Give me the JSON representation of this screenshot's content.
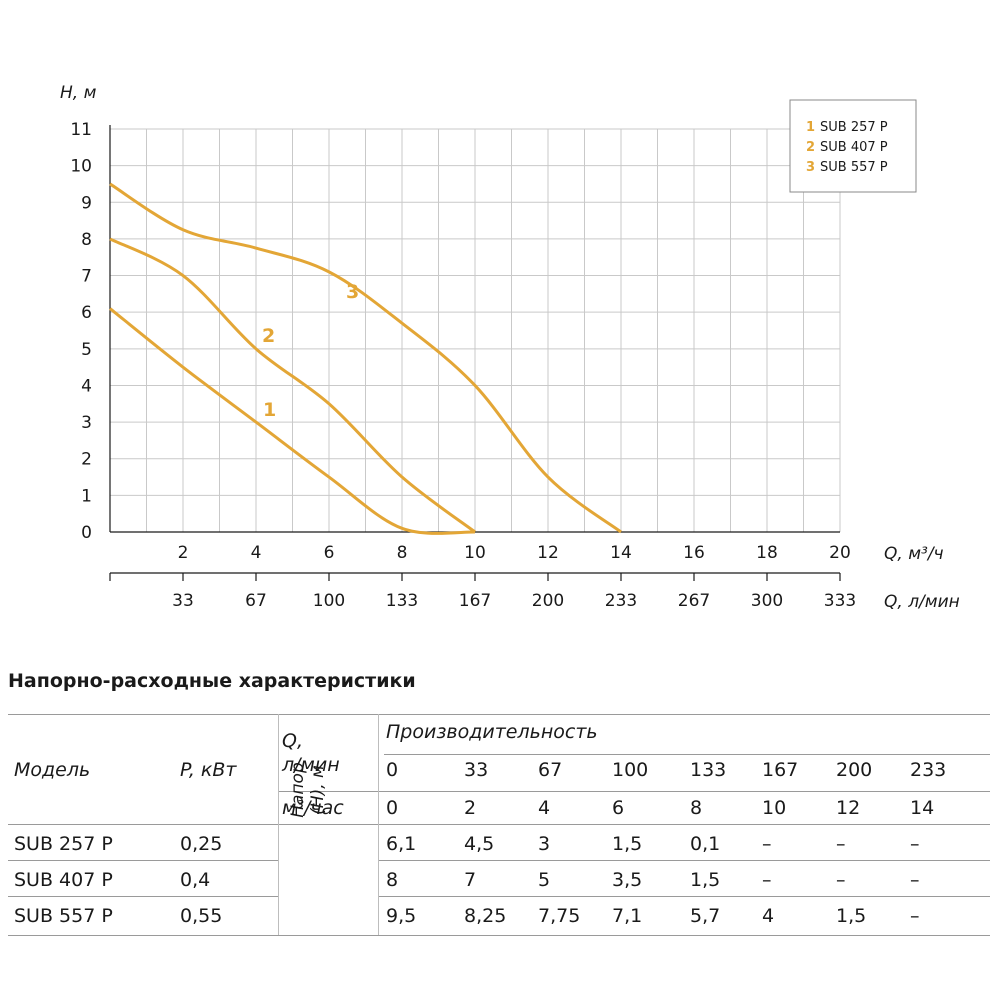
{
  "chart_data": {
    "type": "line",
    "xlabel": "Q, м³/ч",
    "xlabel2": "Q, л/мин",
    "ylabel": "Н, м",
    "xlim": [
      0,
      20
    ],
    "ylim": [
      0,
      11
    ],
    "grid": true,
    "legend_position": "top-right",
    "x_ticks": [
      "2",
      "4",
      "6",
      "8",
      "10",
      "12",
      "14",
      "16",
      "18",
      "20"
    ],
    "x2_ticks": [
      "33",
      "67",
      "100",
      "133",
      "167",
      "200",
      "233",
      "267",
      "300",
      "333"
    ],
    "y_ticks": [
      "0",
      "1",
      "2",
      "3",
      "4",
      "5",
      "6",
      "7",
      "8",
      "9",
      "10",
      "11"
    ],
    "series": [
      {
        "name": "SUB 257 P",
        "label": "1",
        "x": [
          0,
          2,
          4,
          6,
          8,
          10
        ],
        "values": [
          6.1,
          4.5,
          3,
          1.5,
          0.1,
          0
        ]
      },
      {
        "name": "SUB 407 P",
        "label": "2",
        "x": [
          0,
          2,
          4,
          6,
          8,
          10
        ],
        "values": [
          8,
          7,
          5,
          3.5,
          1.5,
          0
        ]
      },
      {
        "name": "SUB 557 P",
        "label": "3",
        "x": [
          0,
          2,
          4,
          6,
          8,
          10,
          12,
          14
        ],
        "values": [
          9.5,
          8.25,
          7.75,
          7.1,
          5.7,
          4,
          1.5,
          0
        ]
      }
    ],
    "legend": [
      {
        "num": "1",
        "text": "SUB 257 P"
      },
      {
        "num": "2",
        "text": "SUB 407 P"
      },
      {
        "num": "3",
        "text": "SUB 557 P"
      }
    ],
    "colors": {
      "curve": "#e3a636",
      "grid": "#c9c9c9",
      "axis": "#1a1a1a"
    }
  },
  "table": {
    "title": "Напорно-расходные характеристики",
    "header": {
      "model": "Модель",
      "power": "P, кВт",
      "q_lmin": "Q,",
      "q_lmin2": "л/мин",
      "q_m3": "м³/час",
      "capacity": "Производительность",
      "flow_lmin": [
        "0",
        "33",
        "67",
        "100",
        "133",
        "167",
        "200",
        "233"
      ],
      "flow_m3": [
        "0",
        "2",
        "4",
        "6",
        "8",
        "10",
        "12",
        "14"
      ],
      "head": "Напор",
      "head2": "(Н), м"
    },
    "rows": [
      {
        "model": "SUB 257 P",
        "power": "0,25",
        "values": [
          "6,1",
          "4,5",
          "3",
          "1,5",
          "0,1",
          "–",
          "–",
          "–"
        ]
      },
      {
        "model": "SUB 407 P",
        "power": "0,4",
        "values": [
          "8",
          "7",
          "5",
          "3,5",
          "1,5",
          "–",
          "–",
          "–"
        ]
      },
      {
        "model": "SUB 557 P",
        "power": "0,55",
        "values": [
          "9,5",
          "8,25",
          "7,75",
          "7,1",
          "5,7",
          "4",
          "1,5",
          "–"
        ]
      }
    ]
  }
}
